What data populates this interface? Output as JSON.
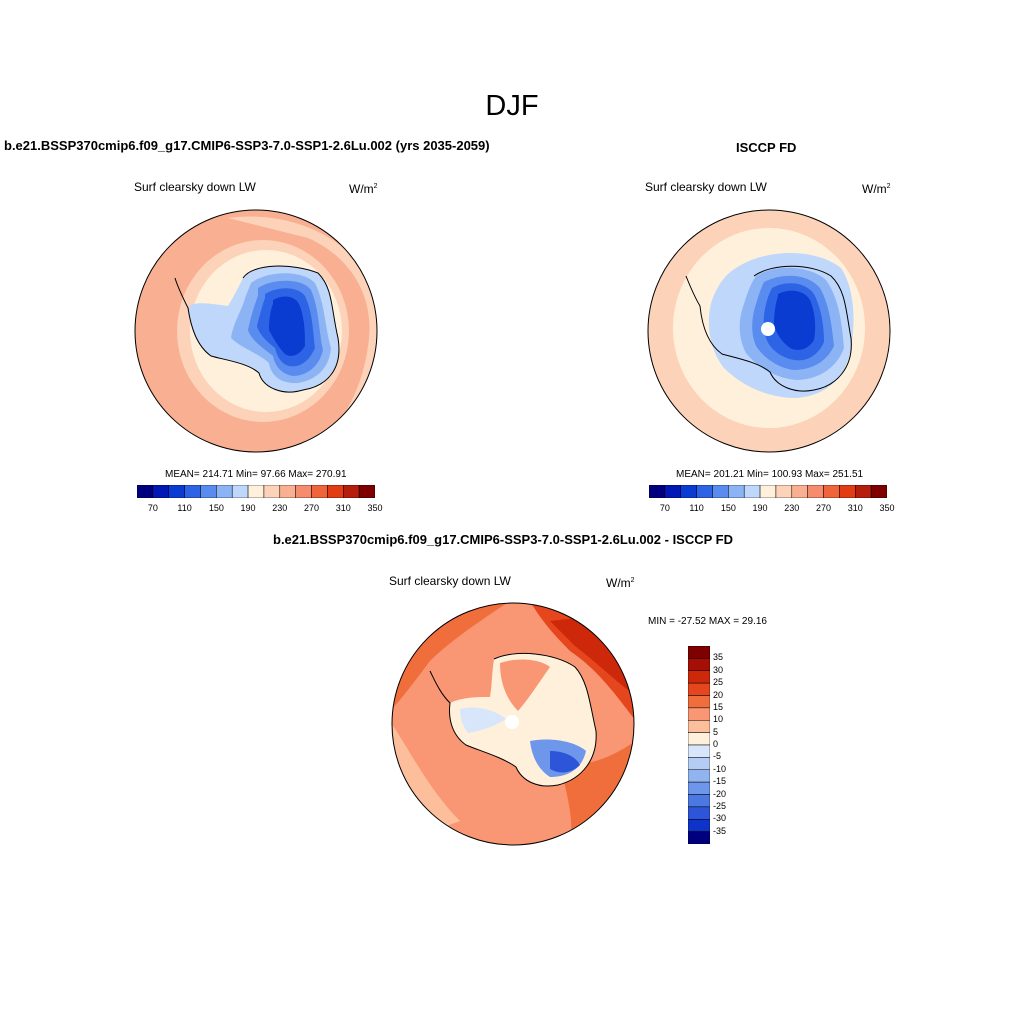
{
  "figure": {
    "title": "DJF"
  },
  "panels": {
    "left": {
      "title": "b.e21.BSSP370cmip6.f09_g17.CMIP6-SSP3-7.0-SSP1-2.6Lu.002 (yrs 2035-2059)",
      "variable": "Surf clearsky down LW",
      "units": "W/m",
      "units_sup": "2",
      "stats": "MEAN= 214.71  Min=  97.66  Max= 270.91",
      "colorbar_labels": [
        "70",
        "110",
        "150",
        "190",
        "230",
        "270",
        "310",
        "350"
      ]
    },
    "right": {
      "title": "ISCCP FD",
      "variable": "Surf clearsky down LW",
      "units": "W/m",
      "units_sup": "2",
      "stats": "MEAN= 201.21  Min= 100.93  Max= 251.51",
      "colorbar_labels": [
        "70",
        "110",
        "150",
        "190",
        "230",
        "270",
        "310",
        "350"
      ]
    },
    "diff": {
      "title": "b.e21.BSSP370cmip6.f09_g17.CMIP6-SSP3-7.0-SSP1-2.6Lu.002 - ISCCP FD",
      "variable": "Surf clearsky down LW",
      "units": "W/m",
      "units_sup": "2",
      "stats": "MIN = -27.52 MAX =  29.16",
      "colorbar_labels": [
        "35",
        "30",
        "25",
        "20",
        "15",
        "10",
        "5",
        "0",
        "-5",
        "-10",
        "-15",
        "-20",
        "-25",
        "-30",
        "-35"
      ]
    }
  },
  "colors": {
    "abs_scale": [
      "#00007f",
      "#0019b4",
      "#0a3cd2",
      "#2d64e6",
      "#5a8cf0",
      "#8cb4f5",
      "#bed7fa",
      "#fff0dc",
      "#fcd2b9",
      "#f9af91",
      "#f68c6e",
      "#f0643c",
      "#e13c14",
      "#b41e0a",
      "#7f0000"
    ],
    "diff_scale": [
      "#7f0000",
      "#a50f05",
      "#cd280a",
      "#e6461e",
      "#f06e3c",
      "#f99673",
      "#fcbe9b",
      "#fff0dc",
      "#d7e6fa",
      "#b4cdf5",
      "#91b4f0",
      "#6e96eb",
      "#4b78e1",
      "#2d55d7",
      "#0f32c8",
      "#00007f"
    ]
  }
}
